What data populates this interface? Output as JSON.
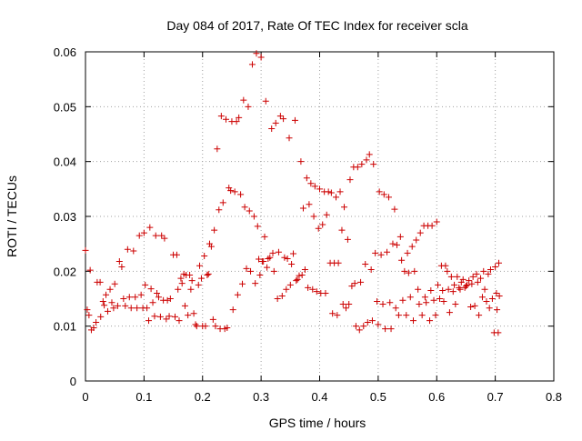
{
  "chart_data": {
    "type": "scatter",
    "title": "Day 084 of 2017, Rate Of TEC Index for receiver scla",
    "xlabel": "GPS time / hours",
    "ylabel": "ROTI / TECUs",
    "xlim": [
      0,
      0.8
    ],
    "ylim": [
      0,
      0.06
    ],
    "xticks": [
      "0",
      "0.1",
      "0.2",
      "0.3",
      "0.4",
      "0.5",
      "0.6",
      "0.7",
      "0.8"
    ],
    "yticks": [
      "0",
      "0.01",
      "0.02",
      "0.03",
      "0.04",
      "0.05",
      "0.06"
    ],
    "grid": true,
    "marker": "+",
    "color": "#cc0000",
    "series": [
      {
        "points": [
          [
            0.0,
            0.0238
          ],
          [
            0.003,
            0.013
          ],
          [
            0.006,
            0.012
          ],
          [
            0.008,
            0.0202
          ],
          [
            0.01,
            0.0093
          ],
          [
            0.014,
            0.0097
          ],
          [
            0.018,
            0.0107
          ],
          [
            0.02,
            0.018
          ],
          [
            0.025,
            0.018
          ],
          [
            0.026,
            0.0117
          ],
          [
            0.03,
            0.0145
          ],
          [
            0.032,
            0.0138
          ],
          [
            0.035,
            0.0157
          ],
          [
            0.038,
            0.0127
          ],
          [
            0.042,
            0.0167
          ],
          [
            0.045,
            0.0143
          ],
          [
            0.048,
            0.0133
          ],
          [
            0.05,
            0.0177
          ],
          [
            0.055,
            0.0137
          ],
          [
            0.058,
            0.0218
          ],
          [
            0.062,
            0.0208
          ],
          [
            0.065,
            0.015
          ],
          [
            0.068,
            0.0137
          ],
          [
            0.072,
            0.024
          ],
          [
            0.075,
            0.0153
          ],
          [
            0.078,
            0.0133
          ],
          [
            0.082,
            0.0237
          ],
          [
            0.085,
            0.0153
          ],
          [
            0.088,
            0.0133
          ],
          [
            0.092,
            0.0265
          ],
          [
            0.095,
            0.0157
          ],
          [
            0.098,
            0.0133
          ],
          [
            0.1,
            0.027
          ],
          [
            0.102,
            0.0175
          ],
          [
            0.105,
            0.0133
          ],
          [
            0.108,
            0.011
          ],
          [
            0.11,
            0.028
          ],
          [
            0.112,
            0.0168
          ],
          [
            0.115,
            0.0143
          ],
          [
            0.118,
            0.0118
          ],
          [
            0.12,
            0.0265
          ],
          [
            0.122,
            0.016
          ],
          [
            0.125,
            0.0153
          ],
          [
            0.128,
            0.0117
          ],
          [
            0.13,
            0.0265
          ],
          [
            0.133,
            0.0147
          ],
          [
            0.135,
            0.026
          ],
          [
            0.138,
            0.0113
          ],
          [
            0.14,
            0.0147
          ],
          [
            0.143,
            0.0118
          ],
          [
            0.145,
            0.015
          ],
          [
            0.15,
            0.023
          ],
          [
            0.153,
            0.0117
          ],
          [
            0.156,
            0.023
          ],
          [
            0.158,
            0.0167
          ],
          [
            0.16,
            0.011
          ],
          [
            0.163,
            0.0187
          ],
          [
            0.165,
            0.0178
          ],
          [
            0.168,
            0.0195
          ],
          [
            0.17,
            0.0137
          ],
          [
            0.172,
            0.0193
          ],
          [
            0.175,
            0.012
          ],
          [
            0.178,
            0.0193
          ],
          [
            0.18,
            0.0167
          ],
          [
            0.182,
            0.0183
          ],
          [
            0.185,
            0.0123
          ],
          [
            0.188,
            0.0103
          ],
          [
            0.19,
            0.01
          ],
          [
            0.193,
            0.0175
          ],
          [
            0.195,
            0.021
          ],
          [
            0.198,
            0.0187
          ],
          [
            0.2,
            0.01
          ],
          [
            0.203,
            0.0228
          ],
          [
            0.205,
            0.01
          ],
          [
            0.208,
            0.0193
          ],
          [
            0.21,
            0.0195
          ],
          [
            0.212,
            0.025
          ],
          [
            0.215,
            0.0245
          ],
          [
            0.218,
            0.0112
          ],
          [
            0.22,
            0.0275
          ],
          [
            0.222,
            0.01
          ],
          [
            0.225,
            0.0423
          ],
          [
            0.228,
            0.0312
          ],
          [
            0.23,
            0.0095
          ],
          [
            0.232,
            0.0483
          ],
          [
            0.235,
            0.0325
          ],
          [
            0.238,
            0.0095
          ],
          [
            0.24,
            0.0477
          ],
          [
            0.242,
            0.0097
          ],
          [
            0.245,
            0.0352
          ],
          [
            0.248,
            0.0347
          ],
          [
            0.25,
            0.0473
          ],
          [
            0.252,
            0.013
          ],
          [
            0.255,
            0.0345
          ],
          [
            0.258,
            0.0473
          ],
          [
            0.26,
            0.0157
          ],
          [
            0.262,
            0.048
          ],
          [
            0.265,
            0.034
          ],
          [
            0.268,
            0.0177
          ],
          [
            0.27,
            0.0512
          ],
          [
            0.272,
            0.0317
          ],
          [
            0.275,
            0.0205
          ],
          [
            0.278,
            0.05
          ],
          [
            0.28,
            0.031
          ],
          [
            0.282,
            0.02
          ],
          [
            0.285,
            0.0577
          ],
          [
            0.288,
            0.03
          ],
          [
            0.29,
            0.0178
          ],
          [
            0.292,
            0.0597
          ],
          [
            0.294,
            0.0282
          ],
          [
            0.296,
            0.0222
          ],
          [
            0.298,
            0.0193
          ],
          [
            0.3,
            0.059
          ],
          [
            0.302,
            0.0218
          ],
          [
            0.304,
            0.0218
          ],
          [
            0.306,
            0.0263
          ],
          [
            0.308,
            0.051
          ],
          [
            0.31,
            0.0207
          ],
          [
            0.312,
            0.0223
          ],
          [
            0.315,
            0.0225
          ],
          [
            0.318,
            0.046
          ],
          [
            0.32,
            0.0233
          ],
          [
            0.322,
            0.02
          ],
          [
            0.325,
            0.047
          ],
          [
            0.328,
            0.015
          ],
          [
            0.33,
            0.0235
          ],
          [
            0.333,
            0.0483
          ],
          [
            0.336,
            0.0155
          ],
          [
            0.338,
            0.0478
          ],
          [
            0.34,
            0.0225
          ],
          [
            0.343,
            0.0167
          ],
          [
            0.345,
            0.0223
          ],
          [
            0.348,
            0.0443
          ],
          [
            0.35,
            0.0175
          ],
          [
            0.352,
            0.0213
          ],
          [
            0.355,
            0.0232
          ],
          [
            0.358,
            0.0475
          ],
          [
            0.36,
            0.0183
          ],
          [
            0.362,
            0.0185
          ],
          [
            0.365,
            0.0192
          ],
          [
            0.368,
            0.04
          ],
          [
            0.37,
            0.0193
          ],
          [
            0.372,
            0.0315
          ],
          [
            0.375,
            0.0203
          ],
          [
            0.378,
            0.037
          ],
          [
            0.38,
            0.017
          ],
          [
            0.382,
            0.0322
          ],
          [
            0.385,
            0.036
          ],
          [
            0.388,
            0.0167
          ],
          [
            0.39,
            0.03
          ],
          [
            0.392,
            0.0355
          ],
          [
            0.395,
            0.0163
          ],
          [
            0.398,
            0.0278
          ],
          [
            0.4,
            0.035
          ],
          [
            0.402,
            0.016
          ],
          [
            0.405,
            0.0285
          ],
          [
            0.408,
            0.0345
          ],
          [
            0.41,
            0.016
          ],
          [
            0.412,
            0.0303
          ],
          [
            0.415,
            0.0345
          ],
          [
            0.418,
            0.0215
          ],
          [
            0.42,
            0.0343
          ],
          [
            0.422,
            0.0123
          ],
          [
            0.425,
            0.0215
          ],
          [
            0.428,
            0.0335
          ],
          [
            0.43,
            0.012
          ],
          [
            0.432,
            0.0215
          ],
          [
            0.435,
            0.0345
          ],
          [
            0.438,
            0.0275
          ],
          [
            0.44,
            0.014
          ],
          [
            0.442,
            0.0317
          ],
          [
            0.445,
            0.0133
          ],
          [
            0.448,
            0.0258
          ],
          [
            0.45,
            0.014
          ],
          [
            0.452,
            0.0367
          ],
          [
            0.455,
            0.0173
          ],
          [
            0.458,
            0.039
          ],
          [
            0.46,
            0.0178
          ],
          [
            0.462,
            0.01
          ],
          [
            0.465,
            0.039
          ],
          [
            0.468,
            0.0093
          ],
          [
            0.47,
            0.018
          ],
          [
            0.472,
            0.0395
          ],
          [
            0.475,
            0.01
          ],
          [
            0.478,
            0.0213
          ],
          [
            0.48,
            0.0403
          ],
          [
            0.482,
            0.0107
          ],
          [
            0.485,
            0.0413
          ],
          [
            0.488,
            0.0203
          ],
          [
            0.49,
            0.011
          ],
          [
            0.492,
            0.0395
          ],
          [
            0.495,
            0.0233
          ],
          [
            0.498,
            0.0145
          ],
          [
            0.5,
            0.0103
          ],
          [
            0.502,
            0.0345
          ],
          [
            0.505,
            0.023
          ],
          [
            0.508,
            0.014
          ],
          [
            0.51,
            0.034
          ],
          [
            0.512,
            0.0095
          ],
          [
            0.515,
            0.0235
          ],
          [
            0.518,
            0.0335
          ],
          [
            0.52,
            0.0143
          ],
          [
            0.522,
            0.0095
          ],
          [
            0.525,
            0.025
          ],
          [
            0.528,
            0.0313
          ],
          [
            0.53,
            0.0133
          ],
          [
            0.532,
            0.0248
          ],
          [
            0.535,
            0.012
          ],
          [
            0.538,
            0.0263
          ],
          [
            0.54,
            0.022
          ],
          [
            0.542,
            0.0147
          ],
          [
            0.545,
            0.02
          ],
          [
            0.548,
            0.012
          ],
          [
            0.55,
            0.0233
          ],
          [
            0.552,
            0.0197
          ],
          [
            0.555,
            0.0153
          ],
          [
            0.558,
            0.0245
          ],
          [
            0.56,
            0.011
          ],
          [
            0.562,
            0.02
          ],
          [
            0.565,
            0.0257
          ],
          [
            0.568,
            0.0167
          ],
          [
            0.57,
            0.014
          ],
          [
            0.572,
            0.027
          ],
          [
            0.575,
            0.012
          ],
          [
            0.578,
            0.0283
          ],
          [
            0.58,
            0.0153
          ],
          [
            0.582,
            0.0143
          ],
          [
            0.585,
            0.0283
          ],
          [
            0.588,
            0.011
          ],
          [
            0.59,
            0.0165
          ],
          [
            0.592,
            0.0283
          ],
          [
            0.595,
            0.0147
          ],
          [
            0.598,
            0.012
          ],
          [
            0.6,
            0.029
          ],
          [
            0.602,
            0.0175
          ],
          [
            0.605,
            0.015
          ],
          [
            0.608,
            0.021
          ],
          [
            0.61,
            0.0165
          ],
          [
            0.612,
            0.0145
          ],
          [
            0.615,
            0.021
          ],
          [
            0.618,
            0.02
          ],
          [
            0.62,
            0.0167
          ],
          [
            0.622,
            0.0125
          ],
          [
            0.625,
            0.019
          ],
          [
            0.628,
            0.0163
          ],
          [
            0.63,
            0.0175
          ],
          [
            0.632,
            0.014
          ],
          [
            0.635,
            0.019
          ],
          [
            0.638,
            0.017
          ],
          [
            0.64,
            0.0167
          ],
          [
            0.642,
            0.018
          ],
          [
            0.645,
            0.0185
          ],
          [
            0.648,
            0.017
          ],
          [
            0.65,
            0.0173
          ],
          [
            0.652,
            0.0175
          ],
          [
            0.655,
            0.0183
          ],
          [
            0.658,
            0.0135
          ],
          [
            0.66,
            0.0177
          ],
          [
            0.662,
            0.019
          ],
          [
            0.665,
            0.0137
          ],
          [
            0.668,
            0.0195
          ],
          [
            0.67,
            0.018
          ],
          [
            0.672,
            0.012
          ],
          [
            0.675,
            0.0187
          ],
          [
            0.678,
            0.0153
          ],
          [
            0.68,
            0.02
          ],
          [
            0.682,
            0.0167
          ],
          [
            0.685,
            0.0145
          ],
          [
            0.688,
            0.0195
          ],
          [
            0.69,
            0.0133
          ],
          [
            0.692,
            0.0203
          ],
          [
            0.695,
            0.015
          ],
          [
            0.698,
            0.0088
          ],
          [
            0.7,
            0.0208
          ],
          [
            0.702,
            0.016
          ],
          [
            0.703,
            0.013
          ],
          [
            0.705,
            0.0088
          ],
          [
            0.706,
            0.0215
          ],
          [
            0.707,
            0.0155
          ]
        ]
      }
    ]
  }
}
